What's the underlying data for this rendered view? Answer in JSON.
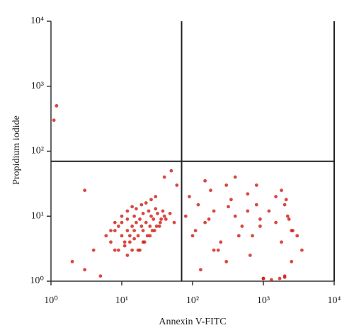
{
  "chart_data": {
    "type": "scatter",
    "xlabel": "Annexin V-FITC",
    "ylabel": "Propidium iodide",
    "log_x": true,
    "log_y": true,
    "xlim": [
      1,
      10000
    ],
    "ylim": [
      1,
      10000
    ],
    "xticks": [
      {
        "value": 1,
        "label": "10⁰"
      },
      {
        "value": 10,
        "label": "10¹"
      },
      {
        "value": 100,
        "label": "10²"
      },
      {
        "value": 1000,
        "label": "10³"
      },
      {
        "value": 10000,
        "label": "10⁴"
      }
    ],
    "yticks": [
      {
        "value": 1,
        "label": "10⁰"
      },
      {
        "value": 10,
        "label": "10¹"
      },
      {
        "value": 100,
        "label": "10²"
      },
      {
        "value": 1000,
        "label": "10³"
      },
      {
        "value": 10000,
        "label": "10⁴"
      }
    ],
    "quadrant_x": 70,
    "quadrant_y": 70,
    "color": "#d01c10",
    "x": [
      6,
      7,
      8,
      8,
      9,
      10,
      10,
      11,
      12,
      12,
      13,
      14,
      15,
      15,
      16,
      17,
      18,
      19,
      20,
      20,
      22,
      24,
      25,
      26,
      28,
      30,
      32,
      35,
      38,
      40,
      9,
      11,
      13,
      15,
      17,
      20,
      23,
      27,
      31,
      36,
      7,
      8,
      10,
      12,
      14,
      16,
      19,
      22,
      26,
      30,
      12,
      14,
      18,
      21,
      25,
      29,
      34,
      42,
      48,
      55,
      80,
      90,
      100,
      120,
      150,
      180,
      200,
      250,
      300,
      350,
      400,
      500,
      600,
      700,
      800,
      900,
      1000,
      1200,
      1500,
      1800,
      2000,
      2200,
      2500,
      3000,
      3500,
      150,
      200,
      300,
      400,
      600,
      800,
      1000,
      1500,
      2000,
      2500,
      110,
      130,
      170,
      230,
      320,
      450,
      650,
      900,
      1300,
      1700,
      2000,
      2100,
      2300,
      2600,
      1800,
      1.2,
      1.1,
      2,
      3,
      4,
      3,
      5,
      40,
      60,
      50
    ],
    "y": [
      5,
      4,
      6,
      3,
      7,
      5,
      8,
      4,
      6,
      9,
      5,
      7,
      6,
      10,
      8,
      5,
      9,
      7,
      11,
      6,
      8,
      12,
      7,
      10,
      9,
      13,
      11,
      8,
      12,
      10,
      3,
      3.5,
      4,
      4.5,
      3,
      4,
      5,
      6,
      7,
      9,
      6,
      8,
      10,
      12,
      14,
      13,
      15,
      16,
      18,
      20,
      2.5,
      3,
      3,
      4,
      5,
      6,
      7,
      9,
      11,
      8,
      10,
      20,
      5,
      15,
      8,
      25,
      12,
      4,
      30,
      18,
      10,
      7,
      22,
      5,
      15,
      9,
      1.1,
      12,
      8,
      4,
      1.2,
      10,
      6,
      5,
      3,
      35,
      3,
      2,
      40,
      12,
      30,
      1.1,
      20,
      15,
      2,
      6,
      1.5,
      9,
      3,
      14,
      5,
      2.5,
      7,
      1.05,
      1.1,
      1.15,
      18,
      9,
      6,
      25,
      500,
      300,
      2,
      1.5,
      3,
      25,
      1.2,
      40,
      30,
      50
    ]
  }
}
